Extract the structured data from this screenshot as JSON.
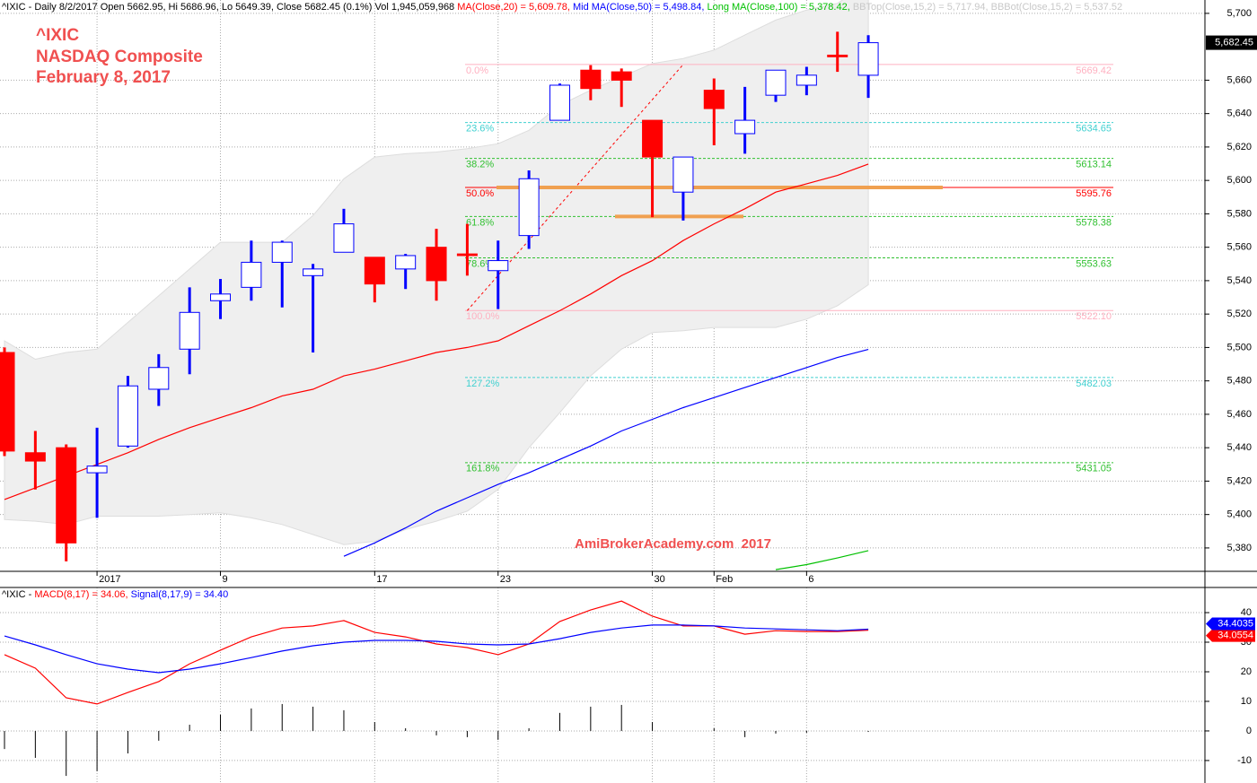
{
  "chart_data": [
    {
      "type": "candlestick",
      "header": [
        {
          "text": "^IXIC - Daily 8/2/2017 Open 5662.95, Hi 5686.96, Lo 5649.39, Close 5682.45 (0.1%) Vol 1,945,059,968 ",
          "color": "#000000"
        },
        {
          "text": "MA(Close,20) = 5,609.78, ",
          "color": "#ff0000"
        },
        {
          "text": "Mid MA(Close,50) = 5,498.84, ",
          "color": "#0000ff"
        },
        {
          "text": "Long MA(Close,100) = 5,378.42, ",
          "color": "#00c000"
        },
        {
          "text": "BBTop(Close,15,2) = 5,717.94, BBBot(Close,15,2) = 5,537.52",
          "color": "#c8c8c8"
        }
      ],
      "title": "^IXIC",
      "subtitle": "NASDAQ Composite",
      "date": "February 8, 2017",
      "annotation": "AmiBrokerAcademy.com  2017",
      "categories": [
        null,
        null,
        null,
        "2017",
        null,
        null,
        null,
        "9",
        null,
        null,
        null,
        null,
        "17",
        null,
        null,
        null,
        "23",
        null,
        null,
        null,
        null,
        "30",
        null,
        "Feb",
        null,
        null,
        "6",
        null,
        null
      ],
      "open": [
        5497,
        5437,
        5440,
        5425,
        5441,
        5475,
        5499,
        5528,
        5536,
        5551,
        5543,
        5557,
        5554,
        5547,
        5560,
        5556,
        5546,
        5567,
        5636,
        5666,
        5665,
        5636,
        5593,
        5654,
        5628,
        5651,
        5657,
        5675,
        5662.95
      ],
      "high": [
        5500,
        5450,
        5442,
        5452,
        5483,
        5496,
        5536,
        5541,
        5564,
        5564,
        5550,
        5583,
        5554,
        5556,
        5571,
        5574,
        5564,
        5606,
        5658,
        5669,
        5667,
        5636,
        5614,
        5661,
        5656,
        5666,
        5668,
        5689,
        5686.96
      ],
      "low": [
        5435,
        5415,
        5372,
        5398,
        5440,
        5465,
        5484,
        5517,
        5528,
        5524,
        5497,
        5557,
        5527,
        5535,
        5528,
        5543,
        5523,
        5559,
        5636,
        5648,
        5644,
        5578,
        5576,
        5621,
        5616,
        5647,
        5651,
        5665,
        5649.39
      ],
      "close": [
        5438,
        5432,
        5383,
        5429,
        5477,
        5488,
        5521,
        5532,
        5551,
        5563,
        5547,
        5574,
        5538,
        5555,
        5540,
        5555,
        5552,
        5601,
        5657,
        5655,
        5660,
        5614,
        5614,
        5643,
        5636,
        5666,
        5663,
        5674,
        5682.45
      ],
      "up_color": "#ffffff",
      "up_edge": "#0000ff",
      "down_color": "#ff0000",
      "last_label": "5,682.45",
      "bands": {
        "color": "#efefef",
        "edge": "#dddddd",
        "upper": [
          5504,
          5493,
          5497,
          5499,
          5515,
          5531,
          5547,
          5563,
          5563,
          5563,
          5579,
          5601,
          5614,
          5616,
          5617,
          5619,
          5622,
          5630,
          5645,
          5654,
          5662,
          5670,
          5673,
          5678,
          5687,
          5696,
          5702,
          5706,
          5717.94
        ],
        "lower": [
          5397,
          5396,
          5394,
          5399,
          5399,
          5399,
          5400,
          5401,
          5398,
          5394,
          5388,
          5382,
          5384,
          5391,
          5396,
          5402,
          5415,
          5440,
          5461,
          5483,
          5499,
          5509,
          5510,
          5512,
          5512,
          5512,
          5517,
          5525,
          5537.52
        ]
      },
      "series": [
        {
          "color": "#ff0000",
          "values": [
            5409,
            5416,
            5423,
            5430,
            5437,
            5445,
            5452,
            5458,
            5464,
            5471,
            5475,
            5483,
            5487,
            5492,
            5497,
            5500,
            5504,
            5513,
            5522,
            5532,
            5543,
            5552,
            5564,
            5574,
            5583,
            5593,
            5598,
            5603,
            5609.78
          ]
        },
        {
          "color": "#0000ff",
          "values": [
            null,
            null,
            null,
            null,
            null,
            null,
            null,
            null,
            null,
            null,
            null,
            5375,
            5383,
            5392,
            5402,
            5410,
            5418,
            5425,
            5433,
            5441,
            5450,
            5457,
            5464,
            5470,
            5476,
            5482,
            5488,
            5494,
            5498.84
          ]
        },
        {
          "color": "#00c000",
          "values": [
            null,
            null,
            null,
            null,
            null,
            null,
            null,
            null,
            null,
            null,
            null,
            null,
            null,
            null,
            null,
            null,
            null,
            null,
            null,
            null,
            null,
            null,
            null,
            null,
            null,
            5367,
            5370,
            5374,
            5378.42
          ]
        }
      ],
      "fibonacci": {
        "levels": [
          "0.0%",
          "23.6%",
          "38.2%",
          "50.0%",
          "61.8%",
          "78.6%",
          "100.0%",
          "127.2%",
          "161.8%"
        ],
        "values": [
          5669.42,
          5634.65,
          5613.14,
          5595.76,
          5578.38,
          5553.63,
          5522.1,
          5482.03,
          5431.05
        ],
        "value_labels": [
          "5669.42",
          "5634.65",
          "5613.14",
          "5595.76",
          "5578.38",
          "5553.63",
          "5522.10",
          "5482.03",
          "5431.05"
        ],
        "colors": [
          "#ffb0c0",
          "#40d0d0",
          "#30c030",
          "#ff0000",
          "#30c030",
          "#30c030",
          "#ffb0c0",
          "#40d0d0",
          "#30c030"
        ]
      },
      "ylim": [
        5366,
        5708
      ],
      "yticks": [
        {
          "value": 5380,
          "label": "5,380"
        },
        {
          "value": 5400,
          "label": "5,400"
        },
        {
          "value": 5420,
          "label": "5,420"
        },
        {
          "value": 5440,
          "label": "5,440"
        },
        {
          "value": 5460,
          "label": "5,460"
        },
        {
          "value": 5480,
          "label": "5,480"
        },
        {
          "value": 5500,
          "label": "5,500"
        },
        {
          "value": 5520,
          "label": "5,520"
        },
        {
          "value": 5540,
          "label": "5,540"
        },
        {
          "value": 5560,
          "label": "5,560"
        },
        {
          "value": 5580,
          "label": "5,580"
        },
        {
          "value": 5600,
          "label": "5,600"
        },
        {
          "value": 5620,
          "label": "5,620"
        },
        {
          "value": 5640,
          "label": "5,640"
        },
        {
          "value": 5660,
          "label": "5,660"
        },
        {
          "value": 5700,
          "label": "5,700"
        }
      ],
      "grid": true
    },
    {
      "type": "macd",
      "header": [
        {
          "text": "^IXIC - ",
          "color": "#000000"
        },
        {
          "text": "MACD(8,17) = 34.06, ",
          "color": "#ff0000"
        },
        {
          "text": "Signal(8,17,9) = 34.40",
          "color": "#0000ff"
        }
      ],
      "series": [
        {
          "color": "#ff0000",
          "tag": "34.0554",
          "values": [
            25.8,
            21.2,
            11.2,
            9.1,
            13,
            16.7,
            22.7,
            27.3,
            31.8,
            34.8,
            35.5,
            37.3,
            33.3,
            31.8,
            29.4,
            28.2,
            25.8,
            29.4,
            37,
            40.9,
            43.9,
            38.8,
            35.5,
            35.5,
            32.7,
            33.9,
            33.6,
            33.6,
            34.06
          ]
        },
        {
          "color": "#0000ff",
          "tag": "34.4035",
          "values": [
            32.1,
            29.1,
            25.8,
            22.7,
            20.9,
            19.7,
            20.9,
            22.7,
            24.8,
            27,
            28.8,
            30,
            30.6,
            30.6,
            30.3,
            29.4,
            29.1,
            29.4,
            31.2,
            33.3,
            34.8,
            35.8,
            35.8,
            35.5,
            34.8,
            34.5,
            34.2,
            33.9,
            34.4
          ]
        }
      ],
      "histogram": {
        "color": "#000000",
        "values": [
          -6.1,
          -9.1,
          -15.2,
          -13.6,
          -7.6,
          -3.3,
          2.1,
          5.5,
          7.6,
          9.1,
          8.2,
          7,
          3,
          0.9,
          -1.5,
          -2.1,
          -3,
          0.9,
          6.1,
          8.2,
          8.8,
          3,
          0,
          0.9,
          -2.1,
          -0.9,
          -0.6,
          0,
          -0.34
        ]
      },
      "ylim": [
        -17.6,
        48.5
      ],
      "yticks": [
        -10,
        0,
        10,
        20,
        30,
        40
      ],
      "grid": true
    }
  ]
}
